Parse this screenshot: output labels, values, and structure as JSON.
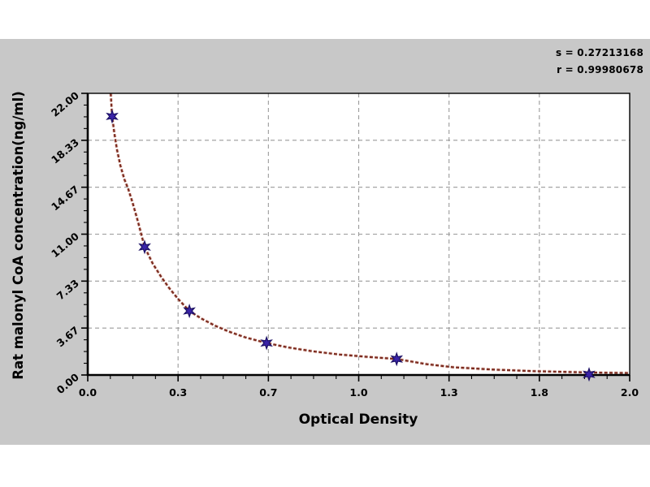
{
  "figure": {
    "background": "#ffffff",
    "panel_background": "#c8c8c8",
    "plot_background": "#ffffff"
  },
  "stats": {
    "s_line": "s = 0.27213168",
    "r_line": "r = 0.99980678"
  },
  "chart_data": {
    "type": "scatter",
    "title": "",
    "xlabel": "Optical Density",
    "ylabel": "Rat malonyl CoA concentration(ng/ml)",
    "xlim": [
      0.0,
      2.0
    ],
    "ylim": [
      0.0,
      22.0
    ],
    "grid": true,
    "legend_position": "none",
    "x_tick_labels": [
      "0.0",
      "0.3",
      "0.7",
      "1.0",
      "1.3",
      "1.8",
      "2.0"
    ],
    "y_tick_labels": [
      "0.00",
      "3.67",
      "7.33",
      "11.00",
      "14.67",
      "18.33",
      "22.00"
    ],
    "annotations": {
      "s": "0.27213168",
      "r": "0.99980678"
    },
    "colors": {
      "grid": "#9a9a9a",
      "axis": "#000000",
      "marker": "#3a23a8",
      "marker_edge": "#1d1166",
      "curve": "#7a2a1e",
      "curve_halo": "#dda294"
    },
    "series": [
      {
        "name": "standard-points",
        "type": "scatter",
        "marker": "star",
        "points": [
          [
            0.09,
            20.2
          ],
          [
            0.21,
            10.0
          ],
          [
            0.375,
            5.0
          ],
          [
            0.66,
            2.5
          ],
          [
            1.14,
            1.25
          ],
          [
            1.85,
            0.05
          ]
        ]
      },
      {
        "name": "fitted-curve",
        "type": "line",
        "dashed": true,
        "points": [
          [
            0.085,
            22.0
          ],
          [
            0.088,
            20.9
          ],
          [
            0.09,
            20.2
          ],
          [
            0.098,
            18.9
          ],
          [
            0.108,
            17.6
          ],
          [
            0.12,
            16.4
          ],
          [
            0.135,
            15.3
          ],
          [
            0.15,
            14.5
          ],
          [
            0.165,
            13.5
          ],
          [
            0.185,
            12.0
          ],
          [
            0.21,
            10.0
          ],
          [
            0.24,
            8.7
          ],
          [
            0.27,
            7.7
          ],
          [
            0.3,
            6.8
          ],
          [
            0.335,
            5.9
          ],
          [
            0.375,
            5.0
          ],
          [
            0.42,
            4.4
          ],
          [
            0.47,
            3.85
          ],
          [
            0.52,
            3.4
          ],
          [
            0.58,
            2.95
          ],
          [
            0.66,
            2.5
          ],
          [
            0.74,
            2.15
          ],
          [
            0.83,
            1.85
          ],
          [
            0.93,
            1.6
          ],
          [
            1.03,
            1.42
          ],
          [
            1.14,
            1.25
          ],
          [
            1.25,
            0.85
          ],
          [
            1.35,
            0.6
          ],
          [
            1.5,
            0.42
          ],
          [
            1.65,
            0.3
          ],
          [
            1.8,
            0.22
          ],
          [
            1.9,
            0.18
          ],
          [
            2.0,
            0.15
          ]
        ]
      }
    ]
  }
}
